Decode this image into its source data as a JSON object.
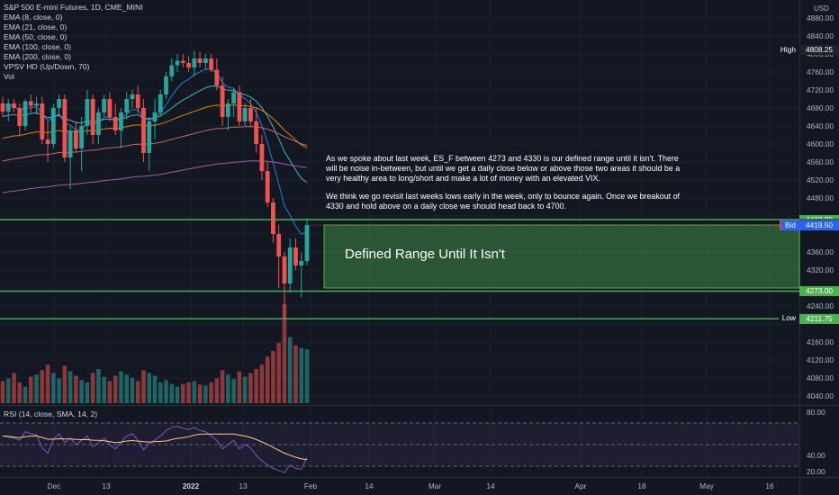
{
  "legend": {
    "symbol": "S&P 500 E-mini Futures, 1D, CME_MINI",
    "indicators": [
      "EMA (8, close, 0)",
      "EMA (21, close, 0)",
      "EMA (50, close, 0)",
      "EMA (100, close, 0)",
      "EMA (200, close, 0)",
      "VPSV HD (Up/Down, 70)",
      "Vol"
    ],
    "rsi": "RSI (14, close, SMA, 14, 2)"
  },
  "currency": "USD",
  "annotation": {
    "paragraph1": "As we spoke about last week, ES_F between 4273 and 4330 is our defined range until it isn't. There will be noise in-between, but until we get a daily close below or above those two areas it should be a very healthy area to long/short and make a lot of money with an elevated VIX.",
    "paragraph2": "We think we go revisit last weeks lows early in the week, only to bounce again. Once we breakout of 4330 and hold above on a daily close we should head back to 4700.",
    "range_label": "Defined Range Until It Isn't"
  },
  "price_axis": {
    "ticks": [
      "4880.00",
      "4840.00",
      "4800.00",
      "4760.00",
      "4720.00",
      "4680.00",
      "4640.00",
      "4600.00",
      "4560.00",
      "4520.00",
      "4480.00",
      "4360.00",
      "4320.00",
      "4240.00",
      "4160.00",
      "4120.00",
      "4080.00",
      "4040.00"
    ],
    "rsi_ticks": [
      "80.00",
      "40.00",
      "20.00"
    ]
  },
  "price_labels": [
    {
      "tag": "High",
      "value": "4808.25",
      "price": 4808.25,
      "color": "#1e222d",
      "tag_color": "#131722"
    },
    {
      "tag": "",
      "value": "4432.00",
      "price": 4432,
      "color": "#4caf50",
      "tag_color": ""
    },
    {
      "tag": "",
      "value": "4423.25",
      "price": 4423.25,
      "color": "#2d6a4f",
      "tag_color": ""
    },
    {
      "tag": "Ask",
      "value": "4419.75",
      "price": 4419.75,
      "color": "#f23645",
      "tag_color": "#f23645"
    },
    {
      "tag": "Bid",
      "value": "4419.50",
      "price": 4419.5,
      "color": "#2962ff",
      "tag_color": "#2962ff"
    },
    {
      "tag": "",
      "value": "4273.00",
      "price": 4273,
      "color": "#4caf50",
      "tag_color": ""
    },
    {
      "tag": "Low",
      "value": "4212.75",
      "price": 4212.75,
      "color": "#1e222d",
      "tag_color": "#131722"
    },
    {
      "tag": "",
      "value": "4211.75",
      "price": 4211.75,
      "color": "#4caf50",
      "tag_color": ""
    }
  ],
  "time_axis": [
    "Dec",
    "13",
    "2022",
    "13",
    "Feb",
    "14",
    "Mar",
    "14",
    "Apr",
    "18",
    "May",
    "16"
  ],
  "colors": {
    "up": "#26a69a",
    "down": "#ef5350",
    "range": "#4caf50",
    "background": "#131722"
  },
  "chart_data": {
    "type": "candlestick",
    "y_range": [
      4020,
      4900
    ],
    "levels": [
      4432,
      4273,
      4211.75
    ],
    "range_box": [
      4280,
      4420
    ],
    "candles": [
      [
        4690,
        4705,
        4660,
        4672
      ],
      [
        4672,
        4700,
        4650,
        4690
      ],
      [
        4690,
        4700,
        4670,
        4680
      ],
      [
        4680,
        4690,
        4620,
        4640
      ],
      [
        4640,
        4700,
        4630,
        4695
      ],
      [
        4695,
        4710,
        4670,
        4685
      ],
      [
        4685,
        4705,
        4665,
        4690
      ],
      [
        4690,
        4705,
        4600,
        4610
      ],
      [
        4610,
        4650,
        4560,
        4600
      ],
      [
        4600,
        4690,
        4590,
        4680
      ],
      [
        4680,
        4710,
        4660,
        4700
      ],
      [
        4700,
        4710,
        4560,
        4570
      ],
      [
        4570,
        4640,
        4500,
        4630
      ],
      [
        4630,
        4650,
        4580,
        4590
      ],
      [
        4590,
        4660,
        4540,
        4640
      ],
      [
        4640,
        4720,
        4620,
        4700
      ],
      [
        4700,
        4710,
        4600,
        4620
      ],
      [
        4620,
        4680,
        4600,
        4670
      ],
      [
        4670,
        4710,
        4660,
        4700
      ],
      [
        4700,
        4715,
        4650,
        4660
      ],
      [
        4660,
        4690,
        4620,
        4630
      ],
      [
        4630,
        4680,
        4590,
        4670
      ],
      [
        4670,
        4715,
        4655,
        4700
      ],
      [
        4700,
        4720,
        4680,
        4710
      ],
      [
        4710,
        4730,
        4670,
        4680
      ],
      [
        4680,
        4700,
        4560,
        4580
      ],
      [
        4580,
        4660,
        4540,
        4650
      ],
      [
        4650,
        4700,
        4610,
        4670
      ],
      [
        4670,
        4720,
        4660,
        4710
      ],
      [
        4710,
        4760,
        4700,
        4750
      ],
      [
        4750,
        4790,
        4740,
        4775
      ],
      [
        4775,
        4800,
        4760,
        4785
      ],
      [
        4785,
        4800,
        4770,
        4780
      ],
      [
        4780,
        4795,
        4760,
        4770
      ],
      [
        4770,
        4808,
        4750,
        4790
      ],
      [
        4790,
        4805,
        4770,
        4780
      ],
      [
        4780,
        4800,
        4765,
        4790
      ],
      [
        4790,
        4800,
        4760,
        4765
      ],
      [
        4765,
        4790,
        4720,
        4730
      ],
      [
        4730,
        4750,
        4640,
        4660
      ],
      [
        4660,
        4700,
        4630,
        4690
      ],
      [
        4690,
        4725,
        4660,
        4715
      ],
      [
        4715,
        4730,
        4640,
        4650
      ],
      [
        4650,
        4690,
        4640,
        4680
      ],
      [
        4680,
        4700,
        4640,
        4650
      ],
      [
        4650,
        4680,
        4580,
        4600
      ],
      [
        4600,
        4620,
        4520,
        4540
      ],
      [
        4540,
        4560,
        4460,
        4470
      ],
      [
        4470,
        4480,
        4380,
        4400
      ],
      [
        4400,
        4420,
        4280,
        4350
      ],
      [
        4350,
        4360,
        4212,
        4290
      ],
      [
        4290,
        4390,
        4270,
        4370
      ],
      [
        4370,
        4390,
        4320,
        4330
      ],
      [
        4330,
        4360,
        4260,
        4340
      ],
      [
        4340,
        4435,
        4330,
        4420
      ]
    ],
    "volume": [
      40,
      45,
      55,
      38,
      30,
      48,
      52,
      60,
      70,
      55,
      45,
      68,
      58,
      50,
      42,
      38,
      55,
      62,
      48,
      40,
      50,
      58,
      52,
      46,
      40,
      60,
      55,
      50,
      38,
      42,
      35,
      30,
      35,
      38,
      40,
      34,
      32,
      38,
      45,
      60,
      52,
      44,
      58,
      48,
      55,
      62,
      70,
      85,
      95,
      110,
      180,
      120,
      105,
      100,
      98
    ],
    "rsi": [
      58,
      57,
      56,
      54,
      62,
      60,
      59,
      47,
      42,
      55,
      60,
      52,
      56,
      50,
      54,
      58,
      48,
      52,
      56,
      50,
      46,
      52,
      58,
      60,
      54,
      45,
      51,
      54,
      58,
      63,
      66,
      67,
      65,
      64,
      66,
      63,
      62,
      58,
      54,
      46,
      50,
      54,
      46,
      50,
      47,
      40,
      35,
      31,
      28,
      26,
      24,
      31,
      28,
      27,
      38
    ],
    "rsi_range": [
      20,
      85
    ]
  }
}
